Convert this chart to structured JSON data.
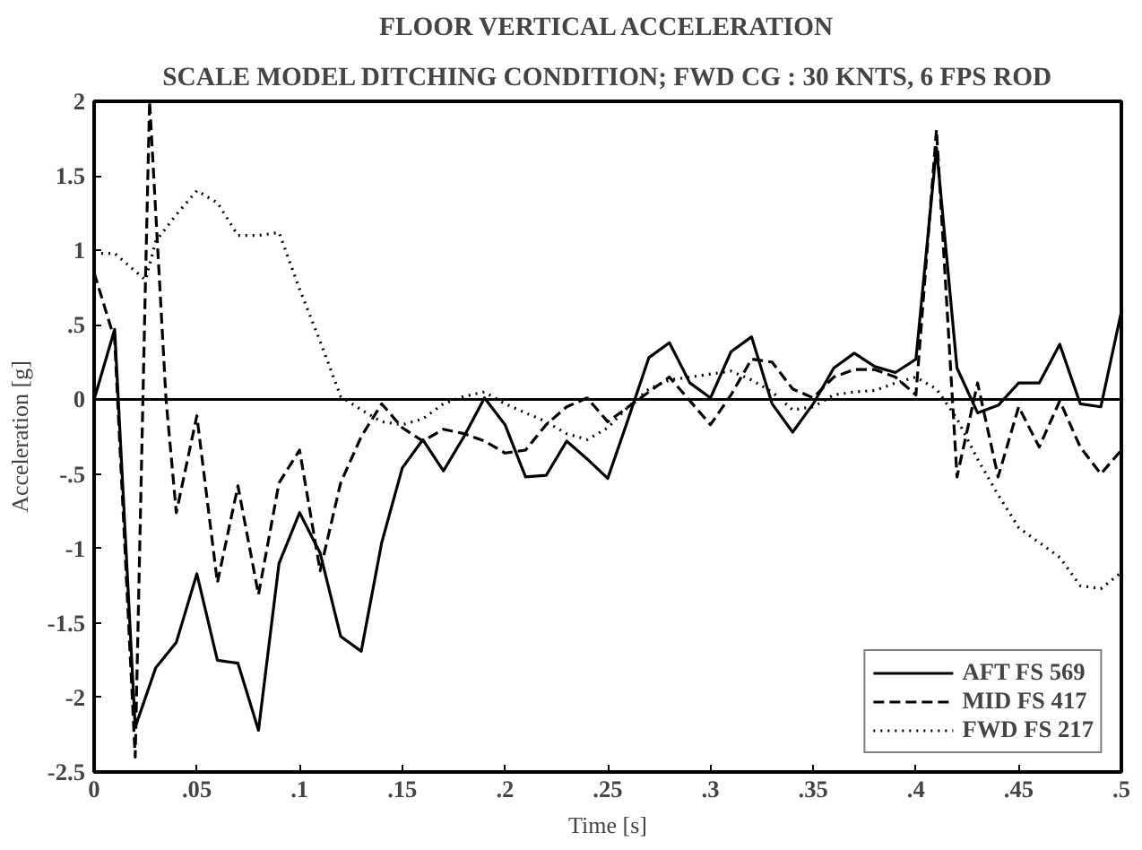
{
  "chart_data": {
    "type": "line",
    "title": "FLOOR VERTICAL ACCELERATION",
    "subtitle": "SCALE MODEL DITCHING CONDITION; FWD CG : 30 KNTS, 6 FPS ROD",
    "xlabel": "Time [s]",
    "ylabel": "Acceleration [g]",
    "xlim": [
      0,
      0.5
    ],
    "ylim": [
      -2.5,
      2
    ],
    "xticks": [
      0,
      {
        "value": 0.05,
        "label": ".05"
      },
      {
        "value": 0.1,
        "label": ".1"
      },
      {
        "value": 0.15,
        "label": ".15"
      },
      {
        "value": 0.2,
        "label": ".2"
      },
      {
        "value": 0.25,
        "label": ".25"
      },
      {
        "value": 0.3,
        "label": ".3"
      },
      {
        "value": 0.35,
        "label": ".35"
      },
      {
        "value": 0.4,
        "label": ".4"
      },
      {
        "value": 0.45,
        "label": ".45"
      },
      {
        "value": 0.5,
        "label": ".5"
      }
    ],
    "yticks": [
      -2.5,
      -2,
      -1.5,
      -1,
      {
        "value": -0.5,
        "label": "-.5"
      },
      0,
      {
        "value": 0.5,
        "label": ".5"
      },
      1,
      1.5,
      2
    ],
    "grid": false,
    "legend": "bottom right",
    "marker": "none",
    "ref_lines": [
      {
        "axis": "y",
        "value": 0,
        "color": "#000000",
        "line_style": "solid"
      }
    ],
    "series": [
      {
        "name": "AFT FS 569",
        "color": "#000000",
        "line_style": "solid",
        "x": [
          0,
          0.01,
          0.02,
          0.03,
          0.04,
          0.05,
          0.06,
          0.07,
          0.08,
          0.09,
          0.1,
          0.11,
          0.12,
          0.13,
          0.14,
          0.15,
          0.16,
          0.17,
          0.18,
          0.19,
          0.2,
          0.21,
          0.22,
          0.23,
          0.24,
          0.25,
          0.26,
          0.27,
          0.28,
          0.29,
          0.3,
          0.31,
          0.32,
          0.33,
          0.34,
          0.35,
          0.36,
          0.37,
          0.38,
          0.39,
          0.4,
          0.41,
          0.42,
          0.43,
          0.44,
          0.45,
          0.46,
          0.47,
          0.48,
          0.49,
          0.5
        ],
        "values": [
          0,
          0.47,
          -2.2,
          -1.8,
          -1.63,
          -1.17,
          -1.75,
          -1.77,
          -2.22,
          -1.1,
          -0.76,
          -1.03,
          -1.59,
          -1.69,
          -0.96,
          -0.46,
          -0.27,
          -0.48,
          -0.25,
          0.01,
          -0.17,
          -0.52,
          -0.51,
          -0.28,
          -0.4,
          -0.53,
          -0.13,
          0.28,
          0.38,
          0.11,
          0.01,
          0.32,
          0.42,
          -0.03,
          -0.22,
          -0.03,
          0.21,
          0.31,
          0.22,
          0.18,
          0.27,
          1.69,
          0.21,
          -0.09,
          -0.04,
          0.11,
          0.11,
          0.37,
          -0.03,
          -0.05,
          0.59
        ]
      },
      {
        "name": "MID FS 417",
        "color": "#000000",
        "line_style": "dashed",
        "x": [
          0,
          0.01,
          0.02,
          0.025,
          0.027,
          0.035,
          0.04,
          0.05,
          0.06,
          0.07,
          0.08,
          0.09,
          0.1,
          0.11,
          0.12,
          0.13,
          0.14,
          0.15,
          0.16,
          0.17,
          0.18,
          0.19,
          0.2,
          0.21,
          0.22,
          0.23,
          0.24,
          0.25,
          0.26,
          0.27,
          0.28,
          0.29,
          0.3,
          0.31,
          0.32,
          0.33,
          0.34,
          0.35,
          0.36,
          0.37,
          0.38,
          0.39,
          0.4,
          0.41,
          0.42,
          0.43,
          0.44,
          0.45,
          0.46,
          0.47,
          0.48,
          0.49,
          0.5
        ],
        "values": [
          0.85,
          0.4,
          -2.4,
          0.8,
          2.0,
          0,
          -0.76,
          -0.11,
          -1.23,
          -0.58,
          -1.31,
          -0.56,
          -0.34,
          -1.15,
          -0.56,
          -0.25,
          -0.03,
          -0.19,
          -0.28,
          -0.2,
          -0.23,
          -0.28,
          -0.36,
          -0.34,
          -0.17,
          -0.05,
          0.01,
          -0.15,
          -0.05,
          0.05,
          0.15,
          -0.01,
          -0.17,
          0.03,
          0.27,
          0.25,
          0.07,
          0.01,
          0.15,
          0.2,
          0.2,
          0.15,
          0.03,
          1.81,
          -0.52,
          0.11,
          -0.52,
          -0.05,
          -0.32,
          -0.01,
          -0.32,
          -0.5,
          -0.34
        ]
      },
      {
        "name": "FWD FS 217",
        "color": "#000000",
        "line_style": "dotted",
        "x": [
          0,
          0.01,
          0.02,
          0.025,
          0.03,
          0.04,
          0.05,
          0.06,
          0.07,
          0.08,
          0.09,
          0.1,
          0.11,
          0.12,
          0.13,
          0.14,
          0.15,
          0.16,
          0.17,
          0.18,
          0.19,
          0.2,
          0.21,
          0.22,
          0.23,
          0.24,
          0.25,
          0.26,
          0.27,
          0.28,
          0.29,
          0.3,
          0.31,
          0.32,
          0.33,
          0.34,
          0.35,
          0.36,
          0.37,
          0.38,
          0.39,
          0.4,
          0.41,
          0.42,
          0.43,
          0.44,
          0.45,
          0.46,
          0.47,
          0.48,
          0.49,
          0.5
        ],
        "values": [
          0.98,
          0.98,
          0.86,
          0.8,
          1.06,
          1.24,
          1.4,
          1.32,
          1.1,
          1.1,
          1.12,
          0.74,
          0.39,
          0.02,
          -0.07,
          -0.15,
          -0.17,
          -0.13,
          -0.03,
          0.02,
          0.05,
          -0.03,
          -0.09,
          -0.15,
          -0.23,
          -0.27,
          -0.19,
          -0.05,
          0.07,
          0.13,
          0.15,
          0.17,
          0.19,
          0.13,
          0.05,
          -0.07,
          -0.05,
          0.03,
          0.05,
          0.06,
          0.11,
          0.15,
          0.07,
          -0.13,
          -0.4,
          -0.64,
          -0.86,
          -0.96,
          -1.06,
          -1.25,
          -1.27,
          -1.16
        ]
      }
    ]
  }
}
